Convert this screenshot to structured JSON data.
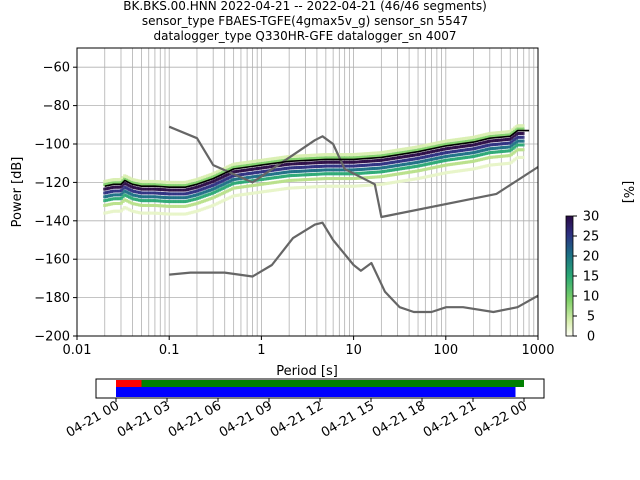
{
  "title_lines": [
    "BK.BKS.00.HNN   2022-04-21 -- 2022-04-21  (46/46 segments)",
    "sensor_type FBAES-TGFE(4gmax5v_g) sensor_sn 5547",
    "datalogger_type Q330HR-GFE datalogger_sn 4007"
  ],
  "chart_data": {
    "type": "line",
    "xlabel": "Period [s]",
    "ylabel": "Power [dB]",
    "xscale": "log",
    "xlim": [
      0.01,
      1000
    ],
    "ylim": [
      -200,
      -50
    ],
    "x_ticks": [
      0.01,
      0.1,
      1,
      10,
      100,
      1000
    ],
    "x_tick_labels": [
      "0.01",
      "0.1",
      "1",
      "10",
      "100",
      "1000"
    ],
    "y_ticks": [
      -200,
      -180,
      -160,
      -140,
      -120,
      -100,
      -80,
      -60
    ],
    "y_tick_labels": [
      "−200",
      "−180",
      "−160",
      "−140",
      "−120",
      "−100",
      "−80",
      "−60"
    ],
    "grid": true,
    "series": [
      {
        "role": "noise-model-high",
        "color": "#666666",
        "points": [
          [
            0.1,
            -91
          ],
          [
            0.2,
            -97
          ],
          [
            0.3,
            -111
          ],
          [
            0.8,
            -120
          ],
          [
            3.8,
            -98
          ],
          [
            4.6,
            -96
          ],
          [
            6,
            -100
          ],
          [
            8,
            -113
          ],
          [
            17,
            -121
          ],
          [
            20,
            -138
          ],
          [
            354,
            -126
          ],
          [
            1000,
            -112
          ]
        ]
      },
      {
        "role": "noise-model-low",
        "color": "#666666",
        "points": [
          [
            0.1,
            -168
          ],
          [
            0.17,
            -167
          ],
          [
            0.4,
            -167
          ],
          [
            0.8,
            -169
          ],
          [
            1.3,
            -163
          ],
          [
            2.2,
            -149
          ],
          [
            3.8,
            -142
          ],
          [
            4.6,
            -141
          ],
          [
            6,
            -150
          ],
          [
            10,
            -163
          ],
          [
            12,
            -166
          ],
          [
            15.6,
            -162
          ],
          [
            21.9,
            -177
          ],
          [
            31.6,
            -185
          ],
          [
            45,
            -187.5
          ],
          [
            70,
            -187.5
          ],
          [
            101,
            -185
          ],
          [
            154,
            -185
          ],
          [
            328,
            -187.5
          ],
          [
            600,
            -185
          ],
          [
            1000,
            -179
          ]
        ]
      },
      {
        "role": "mode",
        "color": "#000000",
        "points": [
          [
            0.02,
            -122
          ],
          [
            0.025,
            -121
          ],
          [
            0.03,
            -121
          ],
          [
            0.033,
            -119
          ],
          [
            0.04,
            -121
          ],
          [
            0.05,
            -122
          ],
          [
            0.07,
            -122
          ],
          [
            0.1,
            -122.5
          ],
          [
            0.15,
            -122.5
          ],
          [
            0.2,
            -121
          ],
          [
            0.3,
            -118
          ],
          [
            0.5,
            -113
          ],
          [
            1,
            -111
          ],
          [
            2,
            -109
          ],
          [
            5,
            -108
          ],
          [
            10,
            -108
          ],
          [
            20,
            -107
          ],
          [
            50,
            -104
          ],
          [
            100,
            -101
          ],
          [
            200,
            -99
          ],
          [
            300,
            -97
          ],
          [
            500,
            -96
          ],
          [
            600,
            -93
          ],
          [
            800,
            -93
          ]
        ]
      }
    ],
    "colorbar": {
      "label": "[%]",
      "range": [
        0,
        30
      ],
      "ticks": [
        0,
        5,
        10,
        15,
        20,
        25,
        30
      ],
      "tick_labels": [
        "0",
        "5",
        "10",
        "15",
        "20",
        "25",
        "30"
      ]
    }
  },
  "timeline": {
    "tick_labels": [
      "04-21 00",
      "04-21 03",
      "04-21 06",
      "04-21 09",
      "04-21 12",
      "04-21 15",
      "04-21 18",
      "04-21 21",
      "04-22 00"
    ],
    "red_bar": {
      "start_hour": 0.0,
      "end_hour": 1.5,
      "color": "#ff0000"
    },
    "green_bar": {
      "start_hour": 1.5,
      "end_hour": 24.0,
      "color": "#008000"
    },
    "blue_bar": {
      "start_hour": 0.0,
      "end_hour": 23.5,
      "color": "#0000ff"
    }
  }
}
